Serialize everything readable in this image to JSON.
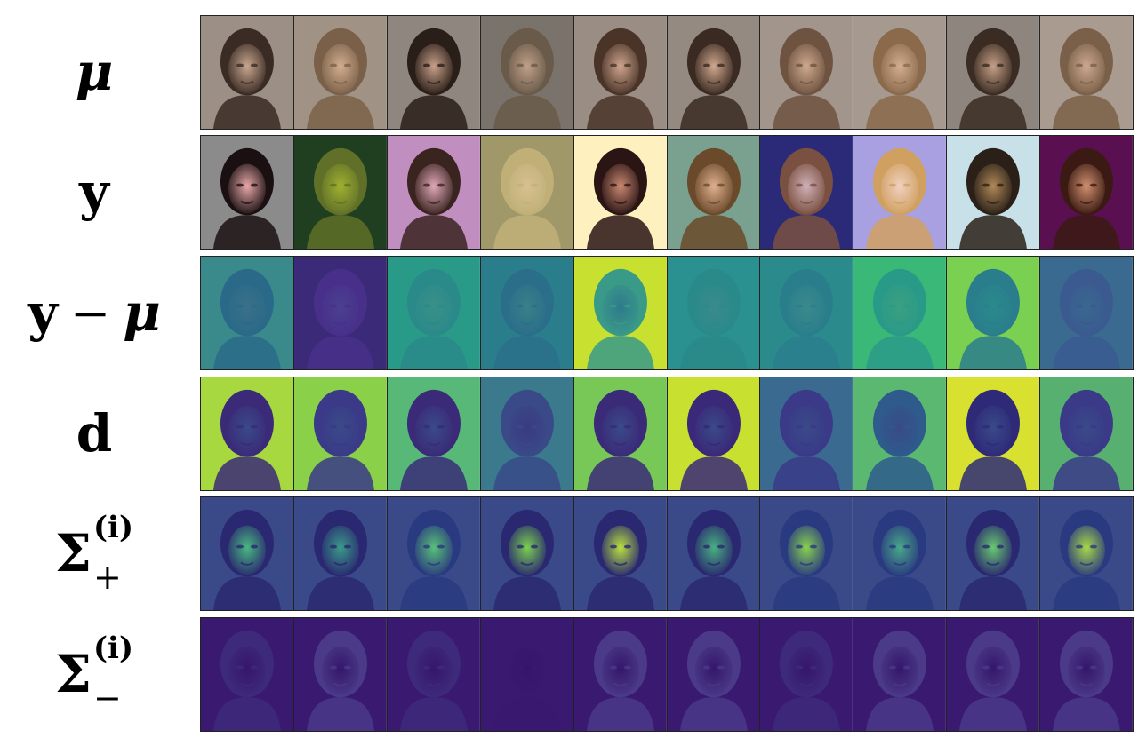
{
  "rows": [
    {
      "id": "mu",
      "label": {
        "base": "μ"
      },
      "style": "photo",
      "bgs": [
        "#9c8f86",
        "#a19286",
        "#8f8680",
        "#7a736c",
        "#9a8d84",
        "#958a82",
        "#a2958b",
        "#a69a90",
        "#8e857f",
        "#a99b90"
      ],
      "hairs": [
        "#3a2c24",
        "#7a6048",
        "#2a1e18",
        "#6a5a4a",
        "#4a3428",
        "#3a2a22",
        "#6e5440",
        "#8a6a4a",
        "#3a2c22",
        "#7a6048"
      ],
      "skins": [
        "#c9a690",
        "#d2ae90",
        "#c8a08a",
        "#c0a088",
        "#cfa58e",
        "#d0a88e",
        "#cfa88e",
        "#d4ad92",
        "#c6a088",
        "#cda890"
      ]
    },
    {
      "id": "y",
      "label": {
        "base": "y"
      },
      "style": "photo",
      "bgs": [
        "#8b8b8b",
        "#1f3f20",
        "#c08fc0",
        "#a09868",
        "#fff0c0",
        "#7aa090",
        "#2a2a78",
        "#a8a0e0",
        "#c8e0e8",
        "#5a1050"
      ],
      "hairs": [
        "#1a1012",
        "#607028",
        "#3a2420",
        "#c0b078",
        "#2a1414",
        "#6a4a2a",
        "#7a5040",
        "#d0a060",
        "#2a2018",
        "#3a1a12"
      ],
      "skins": [
        "#e8a8a8",
        "#a0b030",
        "#e0a8b8",
        "#d8c090",
        "#c88870",
        "#e0b090",
        "#d0b0b8",
        "#f0d0c0",
        "#b08858",
        "#d09070"
      ]
    },
    {
      "id": "y-minus-mu",
      "label": {
        "base": "y",
        "op": "−",
        "tail": "μ"
      },
      "style": "map",
      "bgs": [
        "#3a8a8c",
        "#3a2a78",
        "#2a9a88",
        "#2a7e8c",
        "#c8e030",
        "#2a9090",
        "#2a8a8c",
        "#3ab878",
        "#7ad050",
        "#3a6a90"
      ],
      "hairs": [
        "#2a6a88",
        "#48308a",
        "#2a8a8a",
        "#2a6e8a",
        "#3a9a88",
        "#2a8a8a",
        "#2a7e8c",
        "#2a9a88",
        "#2a7e8c",
        "#3a5a90"
      ],
      "skins": [
        "#3a7088",
        "#4a4090",
        "#3a9088",
        "#3a8088",
        "#2e7a8c",
        "#3a8a8c",
        "#3a8a8c",
        "#3aa080",
        "#2a8a8c",
        "#3a6890"
      ]
    },
    {
      "id": "d",
      "label": {
        "base": "d"
      },
      "style": "map",
      "bgs": [
        "#a8d840",
        "#8ad048",
        "#58b878",
        "#3a7a8c",
        "#78c858",
        "#c8e030",
        "#3a6a90",
        "#5ab870",
        "#d8e030",
        "#58b070"
      ],
      "hairs": [
        "#3a2a78",
        "#3a3a88",
        "#3a2a78",
        "#3a4a88",
        "#3a2a78",
        "#3a2878",
        "#3a3a88",
        "#2e5a8c",
        "#2e2a78",
        "#3a3a88"
      ],
      "skins": [
        "#3a4a88",
        "#3a4a88",
        "#3a4a88",
        "#3a3a80",
        "#3a4a88",
        "#3a4a88",
        "#3a4a88",
        "#3a4a88",
        "#3a4a88",
        "#3a4a88"
      ]
    },
    {
      "id": "sigma-plus",
      "label": {
        "base": "Σ",
        "sup": "(i)",
        "sub": "+"
      },
      "style": "map",
      "bgs": [
        "#3a4a88",
        "#3a4a88",
        "#3a4a88",
        "#3a4a88",
        "#3a4a88",
        "#3a4a88",
        "#3a4a88",
        "#3a4a88",
        "#3a4a88",
        "#3a4a88"
      ],
      "hairs": [
        "#2a2870",
        "#2a2870",
        "#2a3a80",
        "#2a2870",
        "#2a2870",
        "#2a2870",
        "#2a3a80",
        "#2a3a80",
        "#2a2870",
        "#2a3a80"
      ],
      "skins": [
        "#48b880",
        "#3a9a88",
        "#58c078",
        "#7ad050",
        "#b8e040",
        "#48b080",
        "#88d050",
        "#48a888",
        "#68c870",
        "#a8d848"
      ]
    },
    {
      "id": "sigma-minus",
      "label": {
        "base": "Σ",
        "sup": "(i)",
        "sub": "−"
      },
      "style": "map",
      "bgs": [
        "#3a1a70",
        "#3a1a70",
        "#3a1a70",
        "#3a1a70",
        "#3a1a70",
        "#3a1a70",
        "#3a1a70",
        "#3a1a70",
        "#3a1a70",
        "#3a1a70"
      ],
      "hairs": [
        "#3e2a7a",
        "#4a3a88",
        "#3e2a7a",
        "#3a1a70",
        "#4a3a88",
        "#4a3a88",
        "#3e2a7a",
        "#4a3a88",
        "#4a3a88",
        "#4a3a88"
      ],
      "skins": [
        "#36166a",
        "#36166a",
        "#36166a",
        "#36166a",
        "#36166a",
        "#36166a",
        "#36166a",
        "#36166a",
        "#36166a",
        "#36166a"
      ]
    }
  ]
}
